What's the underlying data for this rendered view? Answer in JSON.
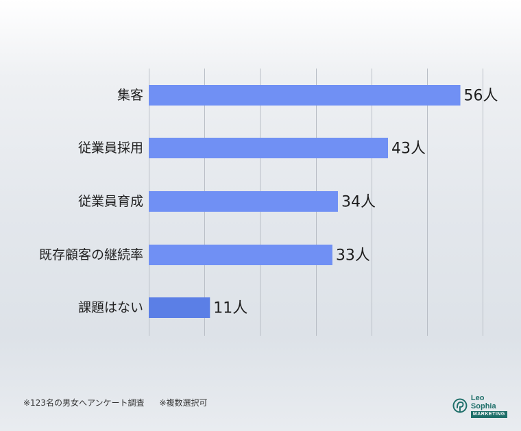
{
  "chart_data": {
    "type": "bar",
    "orientation": "horizontal",
    "categories": [
      "集客",
      "従業員採用",
      "従業員育成",
      "既存顧客の継続率",
      "課題はない"
    ],
    "values": [
      56,
      43,
      34,
      33,
      11
    ],
    "value_labels": [
      "56人",
      "43人",
      "34人",
      "33人",
      "11人"
    ],
    "unit": "人",
    "xlim": [
      0,
      60
    ],
    "grid": true,
    "bar_colors": [
      "#7090f4",
      "#7090f4",
      "#7090f4",
      "#7090f4",
      "#5b7fe6"
    ]
  },
  "footer": {
    "note1": "※123名の男女へアンケート調査",
    "note2": "※複数選択可"
  },
  "logo": {
    "name": "Leo Sophia",
    "sub": "MARKETING",
    "icon": "leo-sophia-logo-icon",
    "color": "#1f6f6a"
  }
}
